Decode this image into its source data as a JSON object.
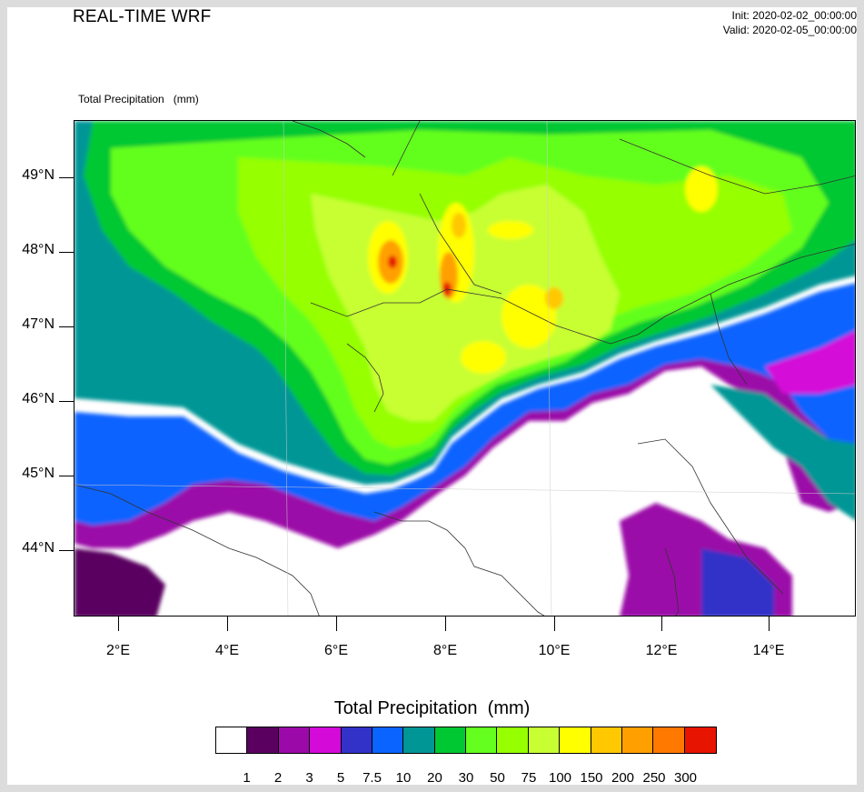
{
  "header": {
    "title": "REAL-TIME WRF",
    "init": "Init: 2020-02-02_00:00:00",
    "valid": "Valid: 2020-02-05_00:00:00",
    "subtitle": "Total Precipitation   (mm)"
  },
  "map": {
    "lat_labels": [
      "49°N",
      "48°N",
      "47°N",
      "46°N",
      "45°N",
      "44°N"
    ],
    "lon_labels": [
      "2°E",
      "4°E",
      "6°E",
      "8°E",
      "10°E",
      "12°E",
      "14°E"
    ],
    "region": "Alps / Northern Italy / France / Switzerland",
    "colors": {
      "none": "#ffffff",
      "c1": "#5a0060",
      "c2": "#9b0aa8",
      "c3": "#d40ad8",
      "c5": "#3232c8",
      "c7_5": "#0a64ff",
      "c10": "#009696",
      "c20": "#00c832",
      "c30": "#64ff1e",
      "c50": "#96ff00",
      "c75": "#c8ff32",
      "c100": "#ffff00",
      "c150": "#ffc800",
      "c200": "#ffa000",
      "c250": "#ff7800",
      "c300": "#e61400"
    }
  },
  "colorbar": {
    "title": "Total Precipitation  (mm)",
    "labels": [
      "1",
      "2",
      "3",
      "5",
      "7.5",
      "10",
      "20",
      "30",
      "50",
      "75",
      "100",
      "150",
      "200",
      "250",
      "300"
    ],
    "colors": [
      "#ffffff",
      "#5a0060",
      "#9b0aa8",
      "#d40ad8",
      "#3232c8",
      "#0a64ff",
      "#009696",
      "#00c832",
      "#64ff1e",
      "#96ff00",
      "#c8ff32",
      "#ffff00",
      "#ffc800",
      "#ffa000",
      "#ff7800",
      "#e61400"
    ]
  }
}
